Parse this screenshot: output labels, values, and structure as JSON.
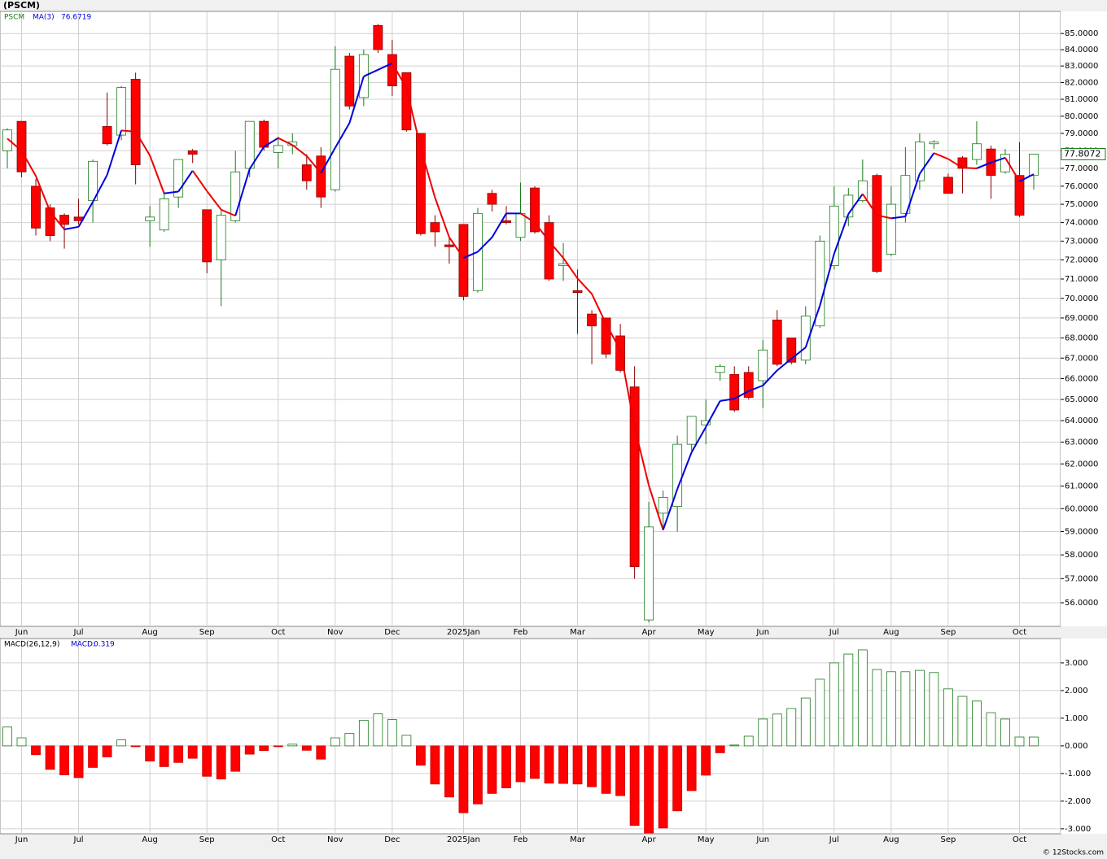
{
  "chart_data": {
    "type": "candlestick",
    "title": "(PSCM)",
    "symbol": "PSCM",
    "log_scale": true,
    "grid": true,
    "up_color": "#1a7a1a",
    "down_color": "#ff0000",
    "ma_up_color": "#0000dd",
    "ma_down_color": "#ee0000",
    "categories": [
      null,
      "Jun",
      null,
      null,
      null,
      "Jul",
      null,
      null,
      null,
      null,
      "Aug",
      null,
      null,
      null,
      "Sep",
      null,
      null,
      null,
      null,
      "Oct",
      null,
      null,
      null,
      "Nov",
      null,
      null,
      null,
      "Dec",
      null,
      null,
      null,
      null,
      "2025Jan",
      null,
      null,
      null,
      "Feb",
      null,
      null,
      null,
      "Mar",
      null,
      null,
      null,
      null,
      "Apr",
      null,
      null,
      null,
      "May",
      null,
      null,
      null,
      "Jun",
      null,
      null,
      null,
      null,
      "Jul",
      null,
      null,
      null,
      "Aug",
      null,
      null,
      null,
      "Sep",
      null,
      null,
      null,
      null,
      "Oct",
      null
    ],
    "open": [
      78.0,
      79.7,
      76.0,
      74.8,
      74.4,
      74.3,
      75.2,
      79.4,
      78.9,
      82.2,
      74.1,
      73.6,
      75.4,
      78.0,
      74.7,
      72.0,
      74.1,
      77.0,
      79.7,
      77.9,
      78.3,
      77.2,
      77.7,
      75.8,
      83.6,
      81.1,
      85.5,
      83.7,
      82.6,
      79.0,
      74.0,
      72.8,
      73.9,
      70.4,
      75.6,
      74.1,
      73.2,
      75.9,
      74.0,
      71.7,
      70.4,
      69.2,
      69.0,
      68.1,
      65.6,
      55.3,
      59.8,
      60.1,
      62.9,
      63.8,
      66.3,
      66.2,
      66.3,
      65.9,
      68.9,
      68.0,
      66.9,
      68.6,
      71.7,
      74.3,
      75.2,
      76.6,
      72.3,
      74.5,
      76.3,
      78.4,
      76.5,
      77.6,
      77.5,
      78.1,
      76.8,
      76.6,
      76.6
    ],
    "high": [
      79.3,
      79.7,
      76.4,
      75.0,
      74.5,
      75.3,
      77.5,
      81.4,
      81.8,
      82.6,
      74.9,
      75.7,
      77.5,
      78.1,
      74.7,
      74.7,
      78.0,
      79.7,
      79.8,
      78.8,
      79.0,
      77.8,
      78.2,
      84.2,
      83.8,
      84.0,
      85.6,
      84.6,
      82.6,
      79.0,
      74.4,
      73.2,
      73.9,
      74.8,
      75.8,
      74.9,
      76.2,
      76.0,
      74.4,
      72.9,
      71.5,
      69.4,
      69.0,
      68.7,
      66.6,
      60.3,
      60.8,
      63.3,
      64.2,
      65.0,
      66.7,
      66.6,
      66.6,
      67.9,
      69.4,
      68.0,
      69.6,
      73.3,
      76.0,
      75.9,
      77.5,
      76.7,
      76.0,
      78.2,
      79.0,
      78.6,
      76.7,
      77.7,
      79.7,
      78.3,
      78.1,
      78.5,
      77.8
    ],
    "low": [
      77.0,
      76.5,
      73.3,
      73.0,
      72.6,
      73.9,
      74.0,
      78.3,
      78.6,
      76.1,
      72.7,
      73.5,
      74.8,
      77.3,
      71.3,
      69.6,
      74.0,
      76.5,
      78.0,
      77.0,
      77.8,
      75.8,
      74.8,
      75.7,
      80.4,
      80.6,
      83.8,
      81.2,
      79.1,
      73.3,
      72.7,
      71.8,
      69.9,
      70.3,
      74.6,
      73.9,
      73.0,
      73.4,
      70.9,
      70.9,
      68.2,
      66.7,
      67.0,
      66.3,
      57.0,
      55.2,
      59.2,
      59.0,
      62.6,
      62.9,
      65.9,
      64.4,
      65.0,
      64.6,
      66.6,
      66.7,
      66.7,
      68.5,
      71.5,
      73.8,
      75.1,
      71.3,
      72.2,
      74.0,
      75.8,
      78.1,
      75.6,
      75.6,
      77.2,
      75.3,
      76.7,
      74.3,
      75.8
    ],
    "close": [
      79.2,
      76.8,
      73.7,
      73.3,
      73.9,
      74.1,
      77.4,
      78.4,
      81.7,
      77.2,
      74.3,
      75.3,
      77.5,
      77.8,
      71.9,
      74.4,
      76.8,
      79.7,
      78.2,
      78.3,
      78.5,
      76.3,
      75.4,
      82.8,
      80.6,
      83.7,
      84.0,
      81.8,
      79.2,
      73.4,
      73.5,
      72.7,
      70.1,
      74.5,
      75.0,
      74.0,
      74.5,
      73.5,
      71.0,
      71.8,
      70.3,
      68.6,
      67.2,
      66.4,
      57.5,
      59.2,
      60.5,
      62.9,
      64.2,
      64.0,
      66.6,
      64.5,
      65.1,
      67.4,
      66.7,
      66.8,
      69.1,
      73.0,
      74.9,
      75.5,
      76.3,
      71.4,
      75.0,
      76.6,
      78.5,
      78.5,
      75.6,
      77.0,
      78.4,
      76.6,
      77.8,
      74.4,
      77.8072
    ],
    "ma": {
      "name": "MA(3)",
      "values": [
        78.7,
        78.0,
        76.57,
        74.6,
        73.63,
        73.77,
        75.13,
        76.63,
        79.17,
        79.1,
        77.73,
        75.6,
        75.7,
        76.87,
        75.73,
        74.7,
        74.37,
        76.97,
        78.23,
        78.73,
        78.33,
        77.7,
        76.73,
        78.17,
        79.6,
        82.37,
        82.77,
        83.17,
        81.67,
        78.13,
        75.37,
        73.2,
        72.1,
        72.43,
        73.2,
        74.5,
        74.5,
        74.0,
        73.0,
        72.1,
        71.03,
        70.23,
        68.7,
        67.4,
        63.7,
        61.03,
        59.07,
        60.87,
        62.53,
        63.7,
        64.93,
        65.03,
        65.4,
        65.67,
        66.4,
        66.97,
        67.53,
        69.63,
        72.33,
        74.47,
        75.57,
        74.4,
        74.23,
        74.33,
        76.7,
        77.87,
        77.53,
        77.03,
        77.0,
        77.33,
        77.6,
        76.27,
        76.6719
      ]
    },
    "ylim": [
      55.04,
      86.39
    ],
    "yticks": [
      {
        "value": 56,
        "label": "56.0000"
      },
      {
        "value": 57,
        "label": "57.0000"
      },
      {
        "value": 58,
        "label": "58.0000"
      },
      {
        "value": 59,
        "label": "59.0000"
      },
      {
        "value": 60,
        "label": "60.0000"
      },
      {
        "value": 61,
        "label": "61.0000"
      },
      {
        "value": 62,
        "label": "62.0000"
      },
      {
        "value": 63,
        "label": "63.0000"
      },
      {
        "value": 64,
        "label": "64.0000"
      },
      {
        "value": 65,
        "label": "65.0000"
      },
      {
        "value": 66,
        "label": "66.0000"
      },
      {
        "value": 67,
        "label": "67.0000"
      },
      {
        "value": 68,
        "label": "68.0000"
      },
      {
        "value": 69,
        "label": "69.0000"
      },
      {
        "value": 70,
        "label": "70.0000"
      },
      {
        "value": 71,
        "label": "71.0000"
      },
      {
        "value": 72,
        "label": "72.0000"
      },
      {
        "value": 73,
        "label": "73.0000"
      },
      {
        "value": 74,
        "label": "74.0000"
      },
      {
        "value": 75,
        "label": "75.0000"
      },
      {
        "value": 76,
        "label": "76.0000"
      },
      {
        "value": 77,
        "label": "77.0000"
      },
      {
        "value": 78,
        "label": "78.0000"
      },
      {
        "value": 79,
        "label": "79.0000"
      },
      {
        "value": 80,
        "label": "80.0000"
      },
      {
        "value": 81,
        "label": "81.0000"
      },
      {
        "value": 82,
        "label": "82.0000"
      },
      {
        "value": 83,
        "label": "83.0000"
      },
      {
        "value": 84,
        "label": "84.0000"
      },
      {
        "value": 85,
        "label": "85.0000"
      }
    ],
    "macd": {
      "name": "MACD(26,12,9)",
      "label": "MACD:",
      "type": "bar",
      "values": [
        0.68,
        0.29,
        -0.32,
        -0.85,
        -1.05,
        -1.15,
        -0.78,
        -0.4,
        0.22,
        -0.03,
        -0.55,
        -0.75,
        -0.6,
        -0.45,
        -1.1,
        -1.2,
        -0.92,
        -0.3,
        -0.17,
        -0.03,
        0.06,
        -0.16,
        -0.48,
        0.29,
        0.45,
        0.92,
        1.16,
        0.95,
        0.38,
        -0.7,
        -1.38,
        -1.85,
        -2.42,
        -2.1,
        -1.72,
        -1.52,
        -1.3,
        -1.18,
        -1.35,
        -1.36,
        -1.38,
        -1.48,
        -1.72,
        -1.8,
        -2.88,
        -3.15,
        -2.97,
        -2.35,
        -1.62,
        -1.06,
        -0.25,
        0.03,
        0.35,
        0.97,
        1.15,
        1.35,
        1.73,
        2.41,
        3.0,
        3.32,
        3.47,
        2.76,
        2.68,
        2.68,
        2.73,
        2.65,
        2.06,
        1.79,
        1.62,
        1.2,
        0.97,
        0.32,
        0.319
      ],
      "ylim": [
        -3.18,
        3.88
      ],
      "yticks": [
        {
          "value": 3,
          "label": "3.000"
        },
        {
          "value": 2,
          "label": "2.000"
        },
        {
          "value": 1,
          "label": "1.000"
        },
        {
          "value": 0,
          "label": "0.000"
        },
        {
          "value": -1,
          "label": "-1.000"
        },
        {
          "value": -2,
          "label": "-2.000"
        },
        {
          "value": -3,
          "label": "-3.000"
        }
      ]
    },
    "footer": "© 12Stocks.com"
  }
}
